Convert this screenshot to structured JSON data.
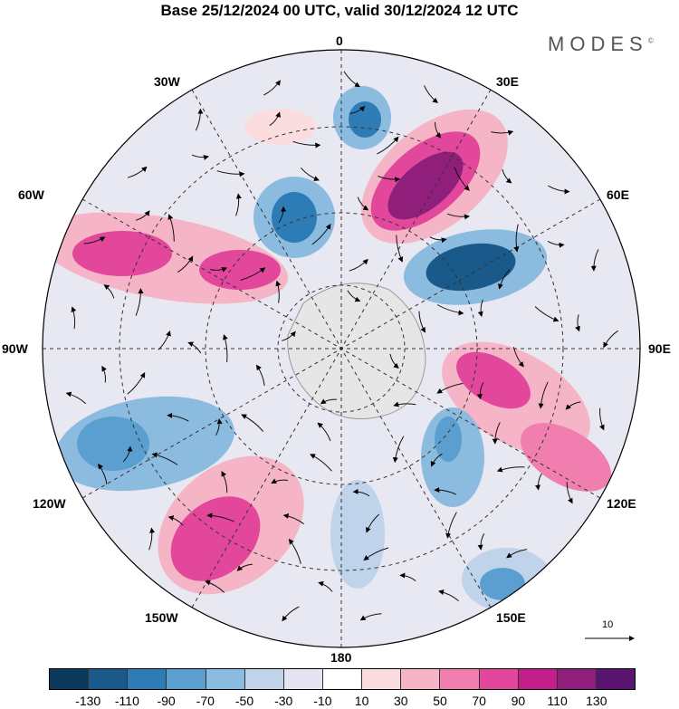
{
  "title": "Base 25/12/2024 00 UTC, valid 30/12/2024 12 UTC",
  "brand": "MODES",
  "brand_mark": "©",
  "longitude_labels": [
    "0",
    "30E",
    "60E",
    "90E",
    "120E",
    "150E",
    "180",
    "150W",
    "120W",
    "90W",
    "60W",
    "30W"
  ],
  "reference_vector": {
    "label": "10"
  },
  "colorbar": {
    "colors": [
      "#0b3a5c",
      "#1a5a8a",
      "#2e7cb6",
      "#5a9fd0",
      "#8cbbe0",
      "#bfd3ea",
      "#e4e4f2",
      "#ffffff",
      "#fbdddf",
      "#f6b5c6",
      "#f07fb0",
      "#e2479c",
      "#c21f8a",
      "#8f1f7a",
      "#5a1570"
    ],
    "ticks": [
      "-130",
      "-110",
      "-90",
      "-70",
      "-50",
      "-30",
      "-10",
      "10",
      "30",
      "50",
      "70",
      "90",
      "110",
      "130"
    ]
  },
  "anomaly_centers": [
    {
      "name": "ridge-east-atlantic",
      "sign": "positive"
    },
    {
      "name": "low-east-atlantic",
      "sign": "negative"
    },
    {
      "name": "high-east-pacific",
      "sign": "positive"
    },
    {
      "name": "low-west-indian",
      "sign": "negative"
    }
  ]
}
